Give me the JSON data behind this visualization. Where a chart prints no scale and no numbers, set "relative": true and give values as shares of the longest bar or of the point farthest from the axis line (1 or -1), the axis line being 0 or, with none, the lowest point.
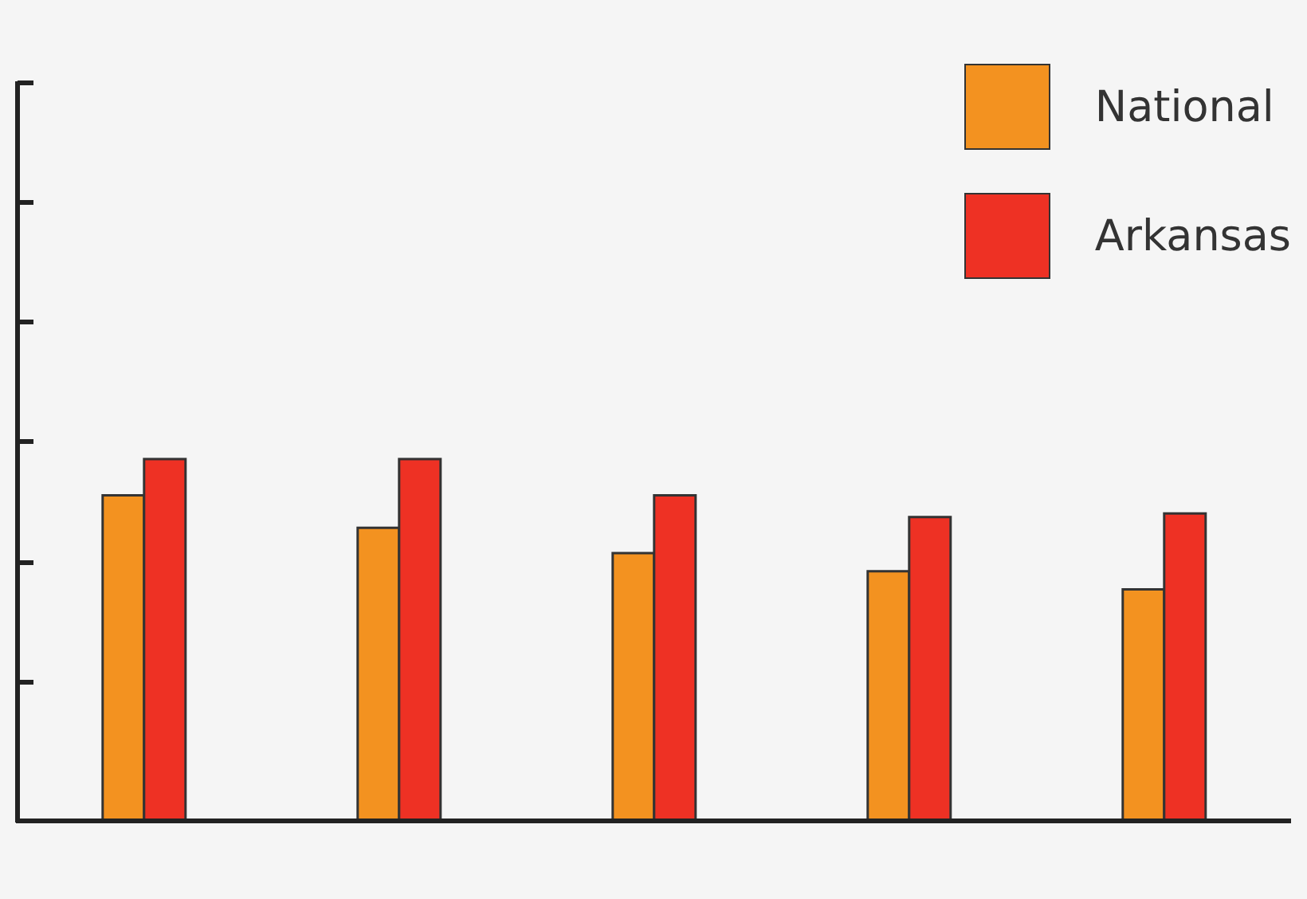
{
  "chart_data": {
    "type": "bar",
    "relative": true,
    "categories": [
      null,
      null,
      null,
      null,
      null
    ],
    "series": [
      {
        "name": "National",
        "color": "#f39220",
        "values": [
          0.9,
          0.81,
          0.74,
          0.69,
          0.64
        ]
      },
      {
        "name": "Arkansas",
        "color": "#ee3124",
        "values": [
          1,
          1,
          0.9,
          0.84,
          0.85
        ]
      }
    ],
    "legend": "top right",
    "grid": false
  }
}
